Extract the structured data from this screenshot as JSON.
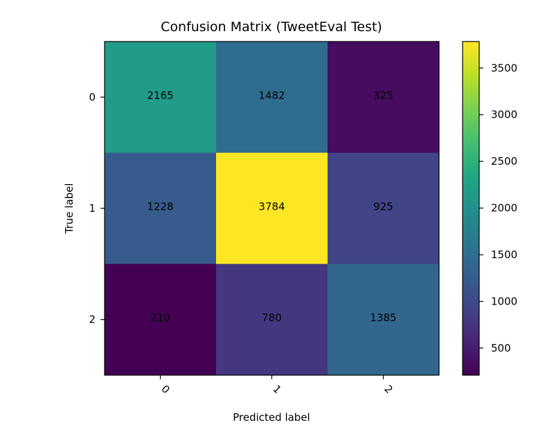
{
  "chart_data": {
    "type": "heatmap",
    "title": "Confusion Matrix (TweetEval Test)",
    "xlabel": "Predicted label",
    "ylabel": "True label",
    "x_categories": [
      "0",
      "1",
      "2"
    ],
    "y_categories": [
      "0",
      "1",
      "2"
    ],
    "values": [
      [
        2165,
        1482,
        325
      ],
      [
        1228,
        3784,
        925
      ],
      [
        210,
        780,
        1385
      ]
    ],
    "colormap": "viridis",
    "color_range": [
      210,
      3784
    ],
    "colorbar_ticks": [
      500,
      1000,
      1500,
      2000,
      2500,
      3000,
      3500
    ],
    "colorbar_tick_labels": [
      "500",
      "1000",
      "1500",
      "2000",
      "2500",
      "3000",
      "3500"
    ],
    "x_tick_rotation_deg": 45,
    "grid": false
  }
}
